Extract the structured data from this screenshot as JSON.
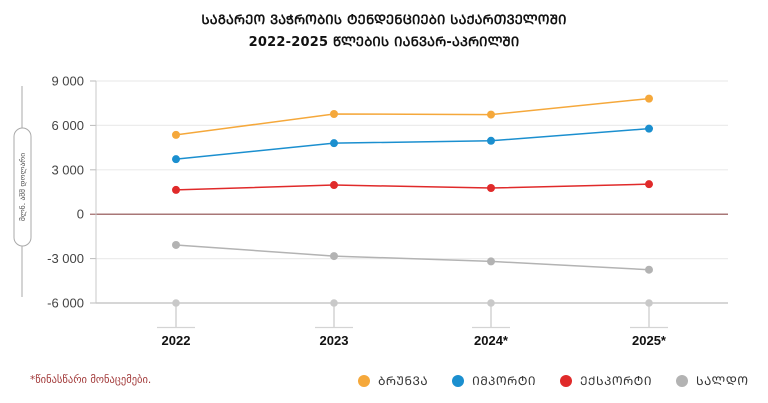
{
  "chart_data": {
    "type": "line",
    "title": "ᲡᲐᲒᲐᲠᲔᲝ ᲕᲐᲭᲠᲝᲑᲘᲡ ᲢᲔᲜᲓᲔᲜᲪᲘᲔᲑᲘ ᲡᲐᲥᲐᲠᲗᲕᲔᲚᲝᲨᲘ",
    "subtitle": "2022-2025 ᲬᲚᲔᲑᲘᲡ ᲘᲐᲜᲕᲐᲠ-ᲐᲞᲠᲘᲚᲨᲘ",
    "xlabel": "",
    "ylabel": "მლნ. აშშ დოლარი",
    "categories": [
      "2022",
      "2023",
      "2024*",
      "2025*"
    ],
    "ylim": [
      -6000,
      9000
    ],
    "yticks": [
      9000,
      6000,
      3000,
      0,
      -3000,
      -6000
    ],
    "ytick_labels": [
      "9 000",
      "6 000",
      "3 000",
      "0",
      "-3 000",
      "-6 000"
    ],
    "grid": true,
    "legend_position": "bottom-right",
    "series": [
      {
        "name": "ᲑᲠᲣᲜᲕᲐ",
        "color": "#f5a83b",
        "values": [
          5360,
          6770,
          6730,
          7810
        ]
      },
      {
        "name": "ᲘᲛᲞᲝᲠᲢᲘ",
        "color": "#1b8fcf",
        "values": [
          3720,
          4800,
          4960,
          5780
        ]
      },
      {
        "name": "ᲔᲥᲡᲞᲝᲠᲢᲘ",
        "color": "#e02a2a",
        "values": [
          1640,
          1970,
          1770,
          2030
        ]
      },
      {
        "name": "ᲡᲐᲚᲓᲝ",
        "color": "#b3b3b3",
        "values": [
          -2080,
          -2830,
          -3190,
          -3750
        ]
      }
    ],
    "footnote": "*წინასწარი მონაცემები."
  },
  "colors": {
    "zero_line": "#8b4a4a",
    "grid": "#ececec",
    "axis": "#bdbdbd",
    "footnote": "#a23a3a"
  }
}
